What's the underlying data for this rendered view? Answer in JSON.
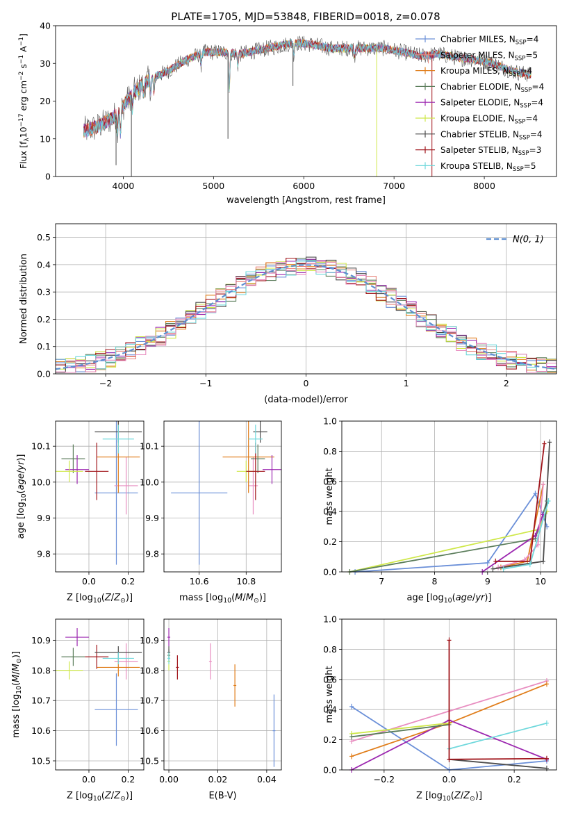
{
  "title": "PLATE=1705, MJD=53848, FIBERID=0018, z=0.078",
  "colors": {
    "chabrier_miles": "#6a8fd8",
    "salpeter_miles": "#e8877f",
    "kroupa_miles": "#e07d1a",
    "chabrier_elodie": "#5b7d5b",
    "salpeter_elodie": "#9c27b0",
    "kroupa_elodie": "#cfe84a",
    "chabrier_stelib": "#4d4d4d",
    "salpeter_stelib": "#a0141a",
    "kroupa_stelib": "#6fd8dc",
    "pink": "#e88dc0",
    "normal": "#5e8fd0",
    "grid": "#b0b0b0"
  },
  "chart_data": [
    {
      "id": "spectrum",
      "type": "line",
      "title": "PLATE=1705, MJD=53848, FIBERID=0018, z=0.078",
      "xlabel": "wavelength [Angstrom, rest frame]",
      "ylabel": "Flux [f_λ 10^-17 erg cm^-2 s^-1 A^-1]",
      "xlim": [
        3250,
        8800
      ],
      "ylim": [
        0,
        40
      ],
      "xticks": [
        "4000",
        "5000",
        "6000",
        "7000",
        "8000"
      ],
      "yticks": [
        "0",
        "10",
        "20",
        "30",
        "40"
      ],
      "grid": false,
      "legend_position": "top-right",
      "legend": [
        {
          "base": "Chabrier MILES, N",
          "sub": "SSP",
          "tail": "=4",
          "color": "chabrier_miles"
        },
        {
          "base": "Salpeter MILES, N",
          "sub": "SSP",
          "tail": "=5",
          "color": "salpeter_miles"
        },
        {
          "base": "Kroupa MILES, N",
          "sub": "SSP",
          "tail": "=4",
          "color": "kroupa_miles"
        },
        {
          "base": "Chabrier ELODIE, N",
          "sub": "SSP",
          "tail": "=4",
          "color": "chabrier_elodie"
        },
        {
          "base": "Salpeter ELODIE, N",
          "sub": "SSP",
          "tail": "=4",
          "color": "salpeter_elodie"
        },
        {
          "base": "Kroupa ELODIE, N",
          "sub": "SSP",
          "tail": "=4",
          "color": "kroupa_elodie"
        },
        {
          "base": "Chabrier STELIB, N",
          "sub": "SSP",
          "tail": "=4",
          "color": "chabrier_stelib"
        },
        {
          "base": "Salpeter STELIB, N",
          "sub": "SSP",
          "tail": "=3",
          "color": "salpeter_stelib"
        },
        {
          "base": "Kroupa STELIB, N",
          "sub": "SSP",
          "tail": "=5",
          "color": "kroupa_stelib"
        }
      ],
      "continuum": [
        [
          3550,
          12
        ],
        [
          3700,
          13
        ],
        [
          3850,
          15
        ],
        [
          3950,
          17
        ],
        [
          4100,
          22
        ],
        [
          4300,
          26
        ],
        [
          4500,
          28
        ],
        [
          4700,
          31
        ],
        [
          4900,
          33
        ],
        [
          5100,
          33
        ],
        [
          5300,
          32.5
        ],
        [
          5500,
          33.5
        ],
        [
          5700,
          34.5
        ],
        [
          5900,
          35.5
        ],
        [
          6100,
          35
        ],
        [
          6300,
          34
        ],
        [
          6500,
          34
        ],
        [
          6700,
          34
        ],
        [
          6900,
          34
        ],
        [
          7100,
          33
        ],
        [
          7300,
          32
        ],
        [
          7500,
          32.5
        ],
        [
          7700,
          31.5
        ],
        [
          7900,
          31
        ],
        [
          8100,
          30
        ],
        [
          8300,
          28
        ],
        [
          8500,
          27
        ]
      ],
      "absorption_lines": [
        [
          3934,
          5
        ],
        [
          3969,
          6
        ],
        [
          4102,
          4
        ],
        [
          4227,
          3
        ],
        [
          4305,
          4
        ],
        [
          4340,
          4
        ],
        [
          4861,
          3
        ],
        [
          5175,
          10
        ],
        [
          5270,
          3
        ],
        [
          5890,
          3
        ],
        [
          6563,
          2
        ]
      ],
      "spikes": [
        [
          3920,
          3
        ],
        [
          4090,
          0
        ],
        [
          5160,
          10
        ],
        [
          5880,
          24
        ],
        [
          6808,
          0
        ],
        [
          7380,
          30
        ],
        [
          7420,
          0
        ]
      ]
    },
    {
      "id": "residuals",
      "type": "histogram",
      "xlabel": "(data-model)/error",
      "ylabel": "Normed distribution",
      "xlim": [
        -2.5,
        2.5
      ],
      "ylim": [
        0,
        0.55
      ],
      "xticks": [
        "−2",
        "−1",
        "0",
        "1",
        "2"
      ],
      "yticks": [
        "0.0",
        "0.1",
        "0.2",
        "0.3",
        "0.4",
        "0.5"
      ],
      "grid": true,
      "bin_width": 0.1,
      "legend_position": "top-right",
      "normal_label": "N(0, 1)"
    },
    {
      "id": "age_vs_Z",
      "type": "errorbar",
      "xlabel": "Z [log10(Z/Z☉)]",
      "ylabel": "age [log10(age/yr)]",
      "xlim": [
        -0.17,
        0.28
      ],
      "ylim": [
        9.75,
        10.17
      ],
      "xticks": [
        "0.0",
        "0.2"
      ],
      "yticks": [
        "9.8",
        "9.9",
        "10.0",
        "10.1"
      ],
      "grid": true,
      "points": [
        {
          "x": 0.14,
          "xerr": 0.11,
          "y": 9.97,
          "yerr": 0.2,
          "color": "chabrier_miles"
        },
        {
          "x": 0.19,
          "xerr": 0.06,
          "y": 9.99,
          "yerr": 0.08,
          "color": "pink"
        },
        {
          "x": 0.15,
          "xerr": 0.11,
          "y": 10.07,
          "yerr": 0.1,
          "color": "kroupa_miles"
        },
        {
          "x": -0.08,
          "xerr": 0.06,
          "y": 10.065,
          "yerr": 0.04,
          "color": "chabrier_elodie"
        },
        {
          "x": -0.06,
          "xerr": 0.06,
          "y": 10.035,
          "yerr": 0.04,
          "color": "salpeter_elodie"
        },
        {
          "x": -0.1,
          "xerr": 0.07,
          "y": 10.03,
          "yerr": 0.03,
          "color": "kroupa_elodie"
        },
        {
          "x": 0.04,
          "xerr": 0.06,
          "y": 10.03,
          "yerr": 0.08,
          "color": "salpeter_stelib"
        },
        {
          "x": 0.15,
          "xerr": 0.12,
          "y": 10.14,
          "yerr": 0.03,
          "color": "chabrier_stelib"
        },
        {
          "x": 0.15,
          "xerr": 0.08,
          "y": 10.12,
          "yerr": 0.04,
          "color": "kroupa_stelib"
        }
      ]
    },
    {
      "id": "age_vs_mass",
      "type": "errorbar",
      "xlabel": "mass [log10(M/M☉)]",
      "ylabel": "",
      "xlim": [
        10.45,
        10.95
      ],
      "ylim": [
        9.75,
        10.17
      ],
      "xticks": [
        "10.6",
        "10.8"
      ],
      "yticks": [
        "9.8",
        "9.9",
        "10.0",
        "10.1"
      ],
      "grid": true,
      "points": [
        {
          "x": 10.6,
          "xerr": 0.12,
          "y": 9.97,
          "yerr": 0.2,
          "color": "chabrier_miles"
        },
        {
          "x": 10.83,
          "xerr": 0.02,
          "y": 9.99,
          "yerr": 0.08,
          "color": "pink"
        },
        {
          "x": 10.81,
          "xerr": 0.11,
          "y": 10.07,
          "yerr": 0.1,
          "color": "kroupa_miles"
        },
        {
          "x": 10.85,
          "xerr": 0.03,
          "y": 10.065,
          "yerr": 0.04,
          "color": "chabrier_elodie"
        },
        {
          "x": 10.91,
          "xerr": 0.04,
          "y": 10.035,
          "yerr": 0.04,
          "color": "salpeter_elodie"
        },
        {
          "x": 10.8,
          "xerr": 0.04,
          "y": 10.03,
          "yerr": 0.03,
          "color": "kroupa_elodie"
        },
        {
          "x": 10.84,
          "xerr": 0.04,
          "y": 10.03,
          "yerr": 0.08,
          "color": "salpeter_stelib"
        },
        {
          "x": 10.86,
          "xerr": 0.03,
          "y": 10.14,
          "yerr": 0.03,
          "color": "chabrier_stelib"
        },
        {
          "x": 10.84,
          "xerr": 0.03,
          "y": 10.12,
          "yerr": 0.04,
          "color": "kroupa_stelib"
        }
      ]
    },
    {
      "id": "weight_vs_age",
      "type": "line",
      "xlabel": "age [log10(age/yr)]",
      "ylabel": "mass weight",
      "xlim": [
        6.25,
        10.3
      ],
      "ylim": [
        0,
        1
      ],
      "xticks": [
        "7",
        "8",
        "9",
        "10"
      ],
      "yticks": [
        "0.0",
        "0.2",
        "0.4",
        "0.6",
        "0.8",
        "1.0"
      ],
      "grid": true,
      "series": [
        {
          "color": "chabrier_miles",
          "points": [
            [
              6.5,
              0
            ],
            [
              9,
              0.06
            ],
            [
              9.9,
              0.52
            ],
            [
              10.12,
              0.3
            ]
          ]
        },
        {
          "color": "kroupa_elodie",
          "points": [
            [
              6.4,
              0
            ],
            [
              9.95,
              0.28
            ],
            [
              10.12,
              0.4
            ]
          ]
        },
        {
          "color": "chabrier_elodie",
          "points": [
            [
              6.4,
              0
            ],
            [
              9.9,
              0.22
            ],
            [
              10.12,
              0.47
            ]
          ]
        },
        {
          "color": "salpeter_elodie",
          "points": [
            [
              8.9,
              0
            ],
            [
              9.9,
              0.24
            ],
            [
              10.05,
              0.38
            ]
          ]
        },
        {
          "color": "kroupa_miles",
          "points": [
            [
              9.25,
              0.03
            ],
            [
              9.75,
              0.07
            ],
            [
              10.05,
              0.58
            ]
          ]
        },
        {
          "color": "pink",
          "points": [
            [
              9.2,
              0.03
            ],
            [
              9.7,
              0.08
            ],
            [
              9.95,
              0.18
            ],
            [
              10.05,
              0.58
            ]
          ]
        },
        {
          "color": "salpeter_stelib",
          "points": [
            [
              9.15,
              0.07
            ],
            [
              9.8,
              0.07
            ],
            [
              10.07,
              0.85
            ]
          ]
        },
        {
          "color": "chabrier_stelib",
          "points": [
            [
              9.1,
              0.02
            ],
            [
              10.05,
              0.07
            ],
            [
              10.17,
              0.86
            ]
          ]
        },
        {
          "color": "kroupa_stelib",
          "points": [
            [
              9.3,
              0.02
            ],
            [
              9.8,
              0.05
            ],
            [
              10.15,
              0.47
            ]
          ]
        }
      ]
    },
    {
      "id": "mass_vs_Z",
      "type": "errorbar",
      "xlabel": "Z [log10(Z/Z☉)]",
      "ylabel": "mass [log10(M/M☉)]",
      "xlim": [
        -0.17,
        0.28
      ],
      "ylim": [
        10.47,
        10.97
      ],
      "xticks": [
        "0.0",
        "0.2"
      ],
      "yticks": [
        "10.5",
        "10.6",
        "10.7",
        "10.8",
        "10.9"
      ],
      "grid": true,
      "points": [
        {
          "x": 0.14,
          "xerr": 0.11,
          "y": 10.67,
          "yerr": 0.12,
          "color": "chabrier_miles"
        },
        {
          "x": 0.19,
          "xerr": 0.06,
          "y": 10.83,
          "yerr": 0.06,
          "color": "pink"
        },
        {
          "x": 0.15,
          "xerr": 0.11,
          "y": 10.81,
          "yerr": 0.03,
          "color": "kroupa_miles"
        },
        {
          "x": -0.08,
          "xerr": 0.06,
          "y": 10.845,
          "yerr": 0.03,
          "color": "chabrier_elodie"
        },
        {
          "x": -0.06,
          "xerr": 0.06,
          "y": 10.91,
          "yerr": 0.03,
          "color": "salpeter_elodie"
        },
        {
          "x": -0.1,
          "xerr": 0.07,
          "y": 10.8,
          "yerr": 0.03,
          "color": "kroupa_elodie"
        },
        {
          "x": 0.04,
          "xerr": 0.06,
          "y": 10.845,
          "yerr": 0.04,
          "color": "salpeter_stelib"
        },
        {
          "x": 0.15,
          "xerr": 0.12,
          "y": 10.86,
          "yerr": 0.02,
          "color": "chabrier_stelib"
        },
        {
          "x": 0.15,
          "xerr": 0.08,
          "y": 10.84,
          "yerr": 0.02,
          "color": "kroupa_stelib"
        }
      ]
    },
    {
      "id": "mass_vs_ebv",
      "type": "errorbar",
      "xlabel": "E(B-V)",
      "ylabel": "",
      "xlim": [
        -0.002,
        0.046
      ],
      "ylim": [
        10.47,
        10.97
      ],
      "xticks": [
        "0.00",
        "0.02",
        "0.04"
      ],
      "yticks": [
        "10.5",
        "10.6",
        "10.7",
        "10.8",
        "10.9"
      ],
      "grid": true,
      "points": [
        {
          "x": 0.043,
          "xerr": 0,
          "y": 10.6,
          "yerr": 0.12,
          "color": "chabrier_miles"
        },
        {
          "x": 0.017,
          "xerr": 0,
          "y": 10.83,
          "yerr": 0.06,
          "color": "pink"
        },
        {
          "x": 0.027,
          "xerr": 0,
          "y": 10.75,
          "yerr": 0.07,
          "color": "kroupa_miles"
        },
        {
          "x": 0.0,
          "xerr": 0,
          "y": 10.85,
          "yerr": 0.02,
          "color": "chabrier_elodie"
        },
        {
          "x": 0.0,
          "xerr": 0,
          "y": 10.91,
          "yerr": 0.03,
          "color": "salpeter_elodie"
        },
        {
          "x": 0.0,
          "xerr": 0,
          "y": 10.83,
          "yerr": 0.03,
          "color": "kroupa_elodie"
        },
        {
          "x": 0.0035,
          "xerr": 0,
          "y": 10.81,
          "yerr": 0.04,
          "color": "salpeter_stelib"
        },
        {
          "x": 0.0,
          "xerr": 0,
          "y": 10.86,
          "yerr": 0.02,
          "color": "chabrier_stelib"
        },
        {
          "x": 0.0,
          "xerr": 0,
          "y": 10.84,
          "yerr": 0.02,
          "color": "kroupa_stelib"
        }
      ]
    },
    {
      "id": "weight_vs_Z",
      "type": "line",
      "xlabel": "Z [log10(Z/Z☉)]",
      "ylabel": "mass weight",
      "xlim": [
        -0.33,
        0.33
      ],
      "ylim": [
        0,
        1
      ],
      "xticks": [
        "−0.2",
        "0.0",
        "0.2"
      ],
      "yticks": [
        "0.0",
        "0.2",
        "0.4",
        "0.6",
        "0.8",
        "1.0"
      ],
      "grid": true,
      "series": [
        {
          "color": "chabrier_miles",
          "points": [
            [
              -0.3,
              0.42
            ],
            [
              0,
              0
            ],
            [
              0.3,
              0.06
            ]
          ]
        },
        {
          "color": "pink",
          "points": [
            [
              -0.3,
              0.19
            ],
            [
              0,
              0.39
            ],
            [
              0.3,
              0.59
            ]
          ]
        },
        {
          "color": "kroupa_miles",
          "points": [
            [
              -0.3,
              0.09
            ],
            [
              0,
              0.31
            ],
            [
              0.3,
              0.57
            ]
          ]
        },
        {
          "color": "salpeter_elodie",
          "points": [
            [
              -0.3,
              0
            ],
            [
              0,
              0.33
            ],
            [
              0.3,
              0.07
            ]
          ]
        },
        {
          "color": "kroupa_elodie",
          "points": [
            [
              -0.3,
              0.24
            ],
            [
              0,
              0.31
            ]
          ]
        },
        {
          "color": "chabrier_elodie",
          "points": [
            [
              -0.3,
              0.22
            ],
            [
              0,
              0.3
            ]
          ]
        },
        {
          "color": "kroupa_stelib",
          "points": [
            [
              0,
              0.14
            ],
            [
              0.3,
              0.31
            ]
          ]
        },
        {
          "color": "chabrier_stelib",
          "points": [
            [
              0,
              0.07
            ],
            [
              0.3,
              0.01
            ]
          ]
        },
        {
          "color": "salpeter_stelib",
          "points": [
            [
              0,
              0.86
            ],
            [
              0,
              0.07
            ],
            [
              0.3,
              0.075
            ]
          ]
        }
      ]
    }
  ]
}
